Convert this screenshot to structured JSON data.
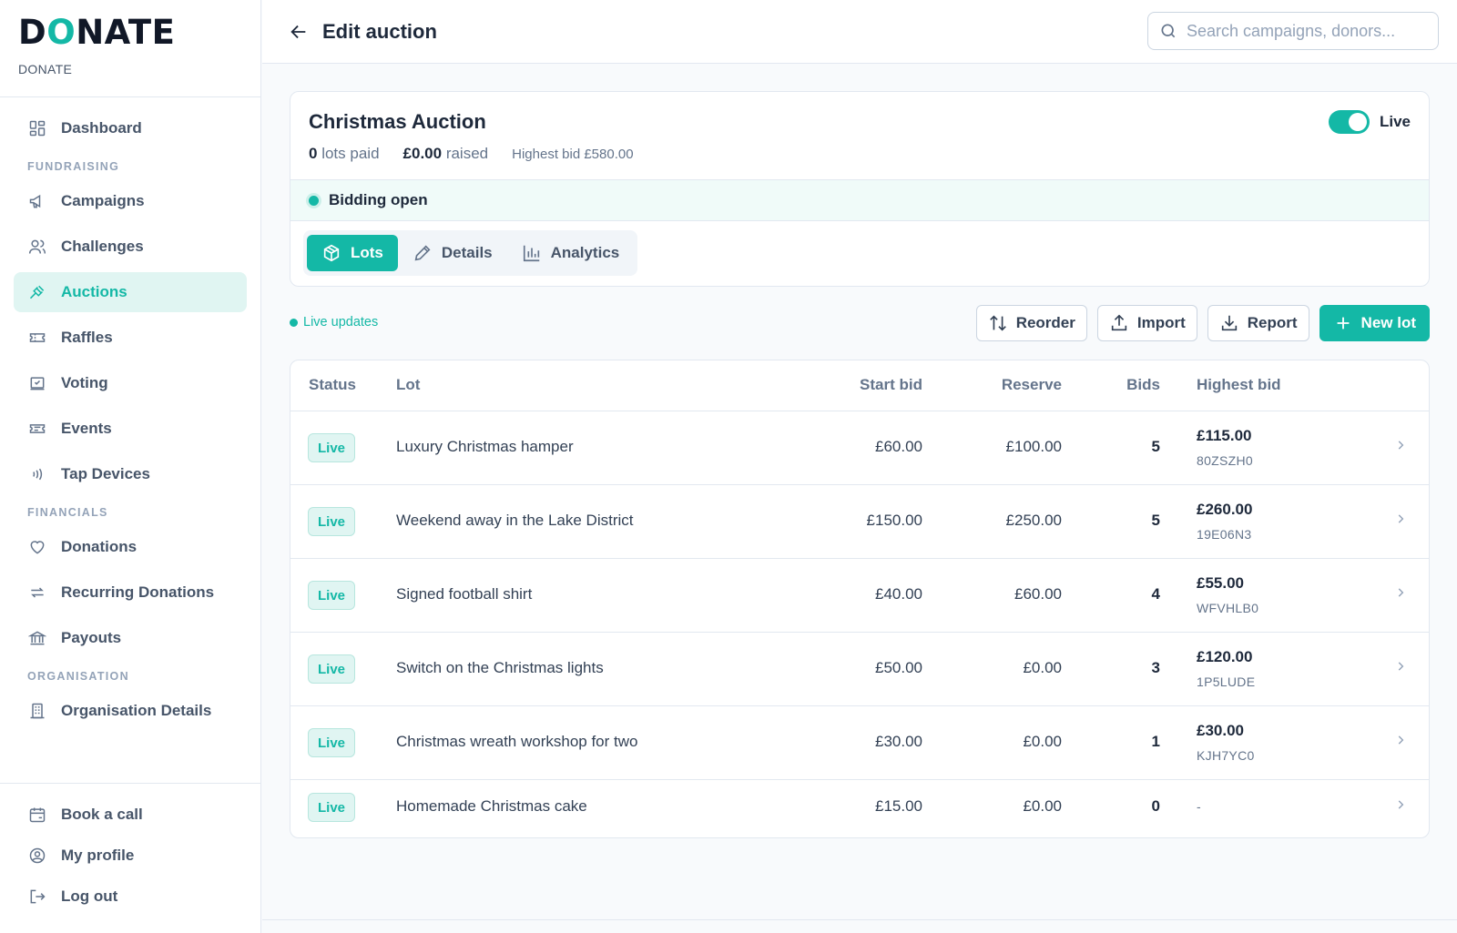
{
  "brand": {
    "logo": "DONATE",
    "subtitle": "DONATE"
  },
  "sidebar": {
    "dashboard": "Dashboard",
    "sections": {
      "fundraising": "FUNDRAISING",
      "financials": "FINANCIALS",
      "organisation": "ORGANISATION"
    },
    "fundraising_items": [
      "Campaigns",
      "Challenges",
      "Auctions",
      "Raffles",
      "Voting",
      "Events",
      "Tap Devices"
    ],
    "financial_items": [
      "Donations",
      "Recurring Donations",
      "Payouts"
    ],
    "organisation_items": [
      "Organisation Details"
    ],
    "bottom_items": [
      "Book a call",
      "My profile",
      "Log out"
    ],
    "active": "Auctions"
  },
  "header": {
    "title": "Edit auction",
    "search_placeholder": "Search campaigns, donors..."
  },
  "campaign": {
    "title": "Christmas Auction",
    "lots_paid_value": "0",
    "lots_paid_label": "lots paid",
    "raised_value": "£0.00",
    "raised_label": "raised",
    "highest_bid": "Highest bid £580.00",
    "live_label": "Live",
    "live_on": true,
    "bidding_status": "Bidding open",
    "tabs": [
      "Lots",
      "Details",
      "Analytics"
    ],
    "active_tab": "Lots"
  },
  "toolbar": {
    "live_updates": "Live updates",
    "reorder": "Reorder",
    "import": "Import",
    "report": "Report",
    "new_lot": "New lot"
  },
  "table": {
    "columns": [
      "Status",
      "Lot",
      "Start bid",
      "Reserve",
      "Bids",
      "Highest bid"
    ],
    "rows": [
      {
        "status": "Live",
        "lot": "Luxury Christmas hamper",
        "start_bid": "£60.00",
        "reserve": "£100.00",
        "bids": "5",
        "highest_bid": "£115.00",
        "bidder_code": "80ZSZH0"
      },
      {
        "status": "Live",
        "lot": "Weekend away in the Lake District",
        "start_bid": "£150.00",
        "reserve": "£250.00",
        "bids": "5",
        "highest_bid": "£260.00",
        "bidder_code": "19E06N3"
      },
      {
        "status": "Live",
        "lot": "Signed football shirt",
        "start_bid": "£40.00",
        "reserve": "£60.00",
        "bids": "4",
        "highest_bid": "£55.00",
        "bidder_code": "WFVHLB0"
      },
      {
        "status": "Live",
        "lot": "Switch on the Christmas lights",
        "start_bid": "£50.00",
        "reserve": "£0.00",
        "bids": "3",
        "highest_bid": "£120.00",
        "bidder_code": "1P5LUDE"
      },
      {
        "status": "Live",
        "lot": "Christmas wreath workshop for two",
        "start_bid": "£30.00",
        "reserve": "£0.00",
        "bids": "1",
        "highest_bid": "£30.00",
        "bidder_code": "KJH7YC0"
      },
      {
        "status": "Live",
        "lot": "Homemade Christmas cake",
        "start_bid": "£15.00",
        "reserve": "£0.00",
        "bids": "0",
        "highest_bid": "-",
        "bidder_code": ""
      }
    ]
  },
  "colors": {
    "accent": "#14b8a6",
    "accent_soft": "#e0f5f2",
    "text": "#1e293b",
    "muted": "#64748b",
    "border": "#e2e8f0"
  }
}
